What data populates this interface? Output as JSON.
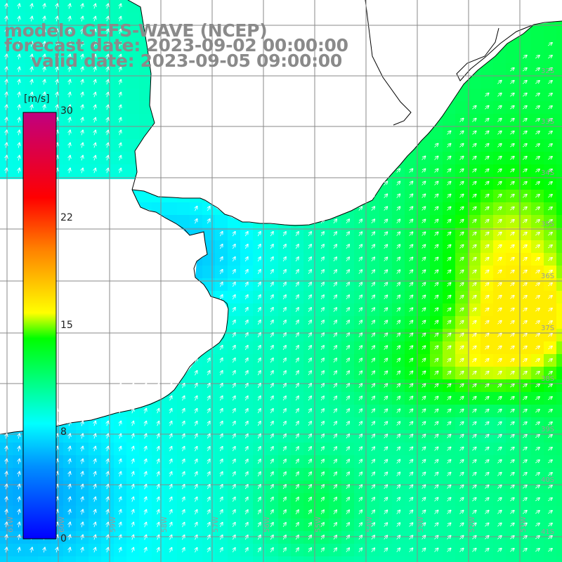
{
  "title": {
    "line1": "modelo GEFS-WAVE (NCEP)",
    "line2": "forecast date: 2023-09-02 00:00:00",
    "line3": "valid date: 2023-09-05 09:00:00"
  },
  "colorbar": {
    "unit": "[m/s]",
    "min": 0,
    "max": 30,
    "ticks": [
      {
        "label": "30",
        "value": 30
      },
      {
        "label": "22",
        "value": 22
      },
      {
        "label": "15",
        "value": 15
      },
      {
        "label": "8",
        "value": 8
      },
      {
        "label": "0",
        "value": 0
      }
    ],
    "stops": [
      "#0000ff",
      "#0090ff",
      "#00ffff",
      "#00ff00",
      "#ffff00",
      "#ff8000",
      "#ff0000",
      "#c00080"
    ]
  },
  "map": {
    "land_color": "#ffffff",
    "coast_color": "#000000",
    "grid_color": "#8a8a8a",
    "arrow_color": "#ffffff",
    "lon_labels": [
      "61W",
      "60W",
      "59W",
      "58W",
      "57W",
      "56W",
      "55W",
      "54W",
      "53W",
      "52W",
      "51W"
    ],
    "lat_labels": [
      "32S",
      "33S",
      "34S",
      "35S",
      "36S",
      "37S",
      "38S",
      "39S",
      "40S",
      "41S"
    ]
  }
}
